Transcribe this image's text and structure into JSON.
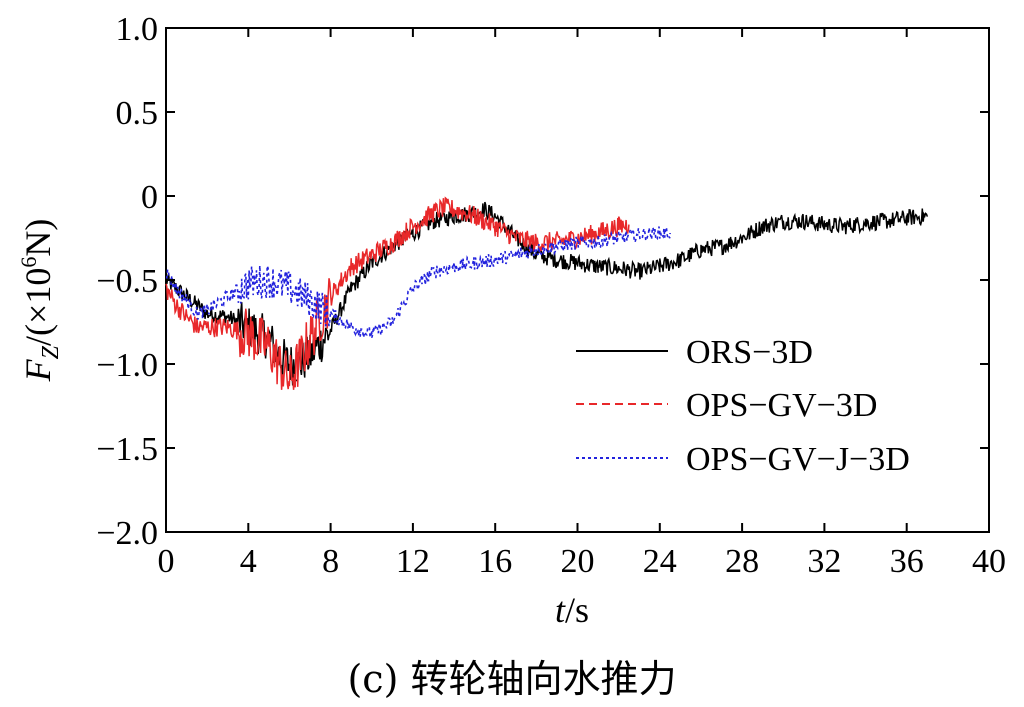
{
  "caption": "(c) 转轮轴向水推力",
  "chart_data": {
    "type": "line",
    "xlabel_italic": "t",
    "xlabel_unit": "/s",
    "ylabel": {
      "symbol": "F",
      "subscript": "Z",
      "unit_open": "/(×10",
      "exponent": "6",
      "unit_close": "N)"
    },
    "xlim": [
      0,
      40
    ],
    "ylim": [
      -2.0,
      1.0
    ],
    "xticks": [
      0,
      4,
      8,
      12,
      16,
      20,
      24,
      28,
      32,
      36,
      40
    ],
    "yticks": [
      -2.0,
      -1.5,
      -1.0,
      -0.5,
      0,
      0.5,
      1.0
    ],
    "ytick_labels": [
      "−2.0",
      "−1.5",
      "−1.0",
      "−0.5",
      "0",
      "0.5",
      "1.0"
    ],
    "legend_position": "lower-right",
    "series": [
      {
        "name": "ORS−3D",
        "color": "#000000",
        "dash": "",
        "x": [
          0,
          0.5,
          1,
          1.5,
          2,
          3,
          4,
          5,
          5.5,
          6,
          6.5,
          7,
          8,
          9,
          10,
          11,
          12,
          13,
          14,
          15,
          15.5,
          16,
          17,
          18,
          19,
          20,
          21,
          22,
          23,
          24,
          25,
          26,
          27,
          28,
          29,
          30,
          31,
          32,
          33,
          34,
          35,
          36,
          37
        ],
        "y": [
          -0.5,
          -0.55,
          -0.6,
          -0.65,
          -0.7,
          -0.72,
          -0.78,
          -0.85,
          -0.95,
          -1.0,
          -1.0,
          -0.95,
          -0.8,
          -0.55,
          -0.4,
          -0.3,
          -0.22,
          -0.15,
          -0.12,
          -0.1,
          -0.08,
          -0.12,
          -0.25,
          -0.35,
          -0.38,
          -0.4,
          -0.42,
          -0.43,
          -0.45,
          -0.42,
          -0.38,
          -0.32,
          -0.3,
          -0.25,
          -0.18,
          -0.15,
          -0.15,
          -0.17,
          -0.18,
          -0.16,
          -0.15,
          -0.13,
          -0.12
        ],
        "noise": 0.05
      },
      {
        "name": "OPS−GV−3D",
        "color": "#e8282a",
        "dash": "",
        "x": [
          0,
          0.5,
          1,
          1.5,
          2,
          3,
          4,
          5,
          5.5,
          6,
          6.5,
          7,
          8,
          9,
          10,
          11,
          12,
          13,
          13.5,
          14,
          15,
          16,
          17,
          18,
          19,
          20,
          21,
          22,
          22.5
        ],
        "y": [
          -0.55,
          -0.65,
          -0.72,
          -0.78,
          -0.78,
          -0.78,
          -0.82,
          -0.9,
          -1.0,
          -1.1,
          -0.98,
          -0.85,
          -0.6,
          -0.42,
          -0.35,
          -0.28,
          -0.18,
          -0.1,
          -0.07,
          -0.08,
          -0.12,
          -0.18,
          -0.25,
          -0.28,
          -0.27,
          -0.25,
          -0.22,
          -0.18,
          -0.17
        ],
        "noise": 0.06
      },
      {
        "name": "OPS−GV−J−3D",
        "color": "#2222dd",
        "dash": "3,3",
        "x": [
          0,
          0.5,
          1,
          1.5,
          2,
          3,
          4,
          5,
          6,
          7,
          8,
          9,
          10,
          11,
          12,
          13,
          14,
          15,
          16,
          17,
          18,
          19,
          20,
          21,
          22,
          23,
          24,
          24.5
        ],
        "y": [
          -0.45,
          -0.55,
          -0.62,
          -0.7,
          -0.68,
          -0.6,
          -0.52,
          -0.5,
          -0.55,
          -0.62,
          -0.7,
          -0.78,
          -0.82,
          -0.75,
          -0.55,
          -0.45,
          -0.42,
          -0.4,
          -0.38,
          -0.35,
          -0.32,
          -0.3,
          -0.28,
          -0.27,
          -0.25,
          -0.23,
          -0.22,
          -0.22
        ],
        "noise": 0.04
      }
    ]
  }
}
